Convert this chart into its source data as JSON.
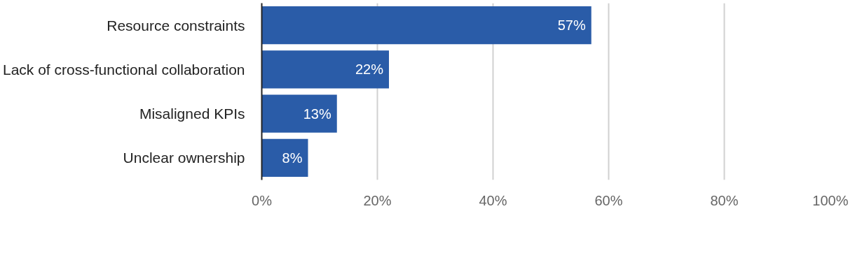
{
  "chart_data": {
    "type": "bar",
    "orientation": "horizontal",
    "categories": [
      "Resource constraints",
      "Lack of cross-functional collaboration",
      "Misaligned KPIs",
      "Unclear ownership"
    ],
    "values": [
      57,
      22,
      13,
      8
    ],
    "color": "#2a5ca8",
    "value_labels": [
      "57%",
      "22%",
      "13%",
      "8%"
    ],
    "xlim": [
      0,
      100
    ],
    "xticks": [
      {
        "value": 0,
        "label": "0%"
      },
      {
        "value": 20,
        "label": "20%"
      },
      {
        "value": 40,
        "label": "40%"
      },
      {
        "value": 60,
        "label": "60%"
      },
      {
        "value": 80,
        "label": "80%"
      },
      {
        "value": 100,
        "label": "100%"
      }
    ],
    "grid": "x"
  }
}
